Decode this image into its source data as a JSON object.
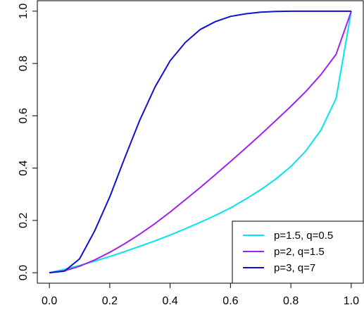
{
  "chart_data": {
    "type": "line",
    "title": "",
    "xlabel": "",
    "ylabel": "",
    "xlim": [
      -0.04,
      1.04
    ],
    "ylim": [
      -0.04,
      1.04
    ],
    "x_ticks": [
      0.0,
      0.2,
      0.4,
      0.6,
      0.8,
      1.0
    ],
    "x_tick_labels": [
      "0.0",
      "0.2",
      "0.4",
      "0.6",
      "0.8",
      "1.0"
    ],
    "y_ticks": [
      0.0,
      0.2,
      0.4,
      0.6,
      0.8,
      1.0
    ],
    "y_tick_labels": [
      "0.0",
      "0.2",
      "0.4",
      "0.6",
      "0.8",
      "1.0"
    ],
    "grid": false,
    "legend_position": "bottom-right",
    "x": [
      0.0,
      0.05,
      0.1,
      0.15,
      0.2,
      0.25,
      0.3,
      0.35,
      0.4,
      0.45,
      0.5,
      0.55,
      0.6,
      0.65,
      0.7,
      0.75,
      0.8,
      0.85,
      0.9,
      0.95,
      1.0
    ],
    "series": [
      {
        "name": "p=1.5, q=0.5",
        "color": "#00e5ee",
        "values": [
          0.0,
          0.013,
          0.028,
          0.044,
          0.062,
          0.081,
          0.101,
          0.122,
          0.144,
          0.168,
          0.193,
          0.219,
          0.248,
          0.281,
          0.317,
          0.358,
          0.406,
          0.466,
          0.546,
          0.667,
          1.0
        ]
      },
      {
        "name": "p=2, q=1.5",
        "color": "#a020f0",
        "values": [
          0.0,
          0.007,
          0.025,
          0.049,
          0.078,
          0.111,
          0.148,
          0.188,
          0.232,
          0.279,
          0.326,
          0.375,
          0.425,
          0.476,
          0.528,
          0.582,
          0.636,
          0.693,
          0.758,
          0.835,
          1.0
        ]
      },
      {
        "name": "p=3, q=7",
        "color": "#1010d0",
        "values": [
          0.0,
          0.006,
          0.053,
          0.16,
          0.29,
          0.44,
          0.585,
          0.71,
          0.81,
          0.88,
          0.93,
          0.96,
          0.98,
          0.99,
          0.996,
          0.999,
          1.0,
          1.0,
          1.0,
          1.0,
          1.0
        ]
      }
    ]
  }
}
